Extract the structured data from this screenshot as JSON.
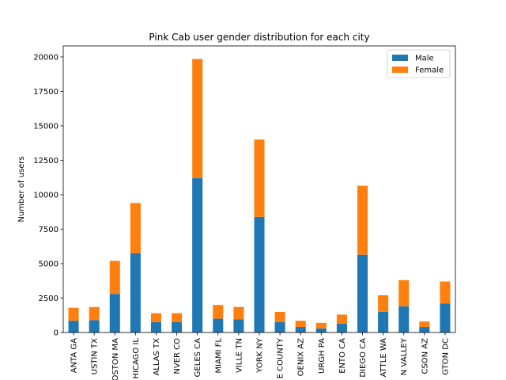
{
  "chart_data": {
    "type": "bar",
    "stacked": true,
    "title": "Pink Cab user gender distribution for each city",
    "xlabel": "",
    "ylabel": "Number of users",
    "ylim": [
      0,
      20800
    ],
    "yticks": [
      0,
      2500,
      5000,
      7500,
      10000,
      12500,
      15000,
      17500,
      20000
    ],
    "categories": [
      "ANTA GA",
      "USTIN TX",
      "OSTON MA",
      "HICAGO IL",
      "ALLAS TX",
      "NVER CO",
      "GELES CA",
      "MIAMI FL",
      "VILLE TN",
      "YORK NY",
      "E COUNTY",
      "OENIX AZ",
      "URGH PA",
      "ENTO CA",
      "DIEGO CA",
      "ATTLE WA",
      "N VALLEY",
      "CSON AZ",
      "GTON DC"
    ],
    "series": [
      {
        "name": "Male",
        "color": "#1f77b4",
        "values": [
          850,
          900,
          2800,
          5750,
          750,
          750,
          11200,
          1000,
          950,
          8400,
          750,
          400,
          300,
          650,
          5650,
          1500,
          1900,
          400,
          2100
        ]
      },
      {
        "name": "Female",
        "color": "#ff7f0e",
        "values": [
          950,
          950,
          2400,
          3650,
          650,
          650,
          8650,
          1000,
          900,
          5600,
          750,
          450,
          400,
          650,
          5000,
          1200,
          1900,
          400,
          1600
        ]
      }
    ],
    "grid": false,
    "legend": "top-right"
  }
}
